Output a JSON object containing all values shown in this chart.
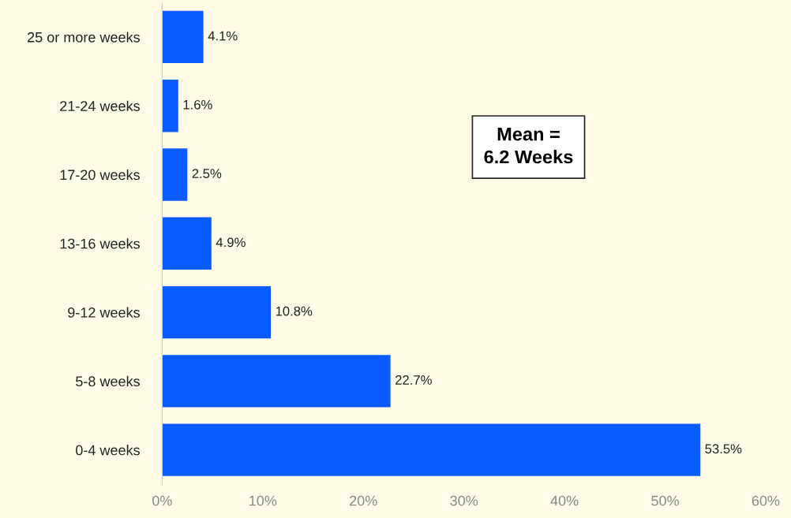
{
  "chart_data": {
    "type": "bar",
    "orientation": "horizontal",
    "categories": [
      "25 or more weeks",
      "21-24 weeks",
      "17-20 weeks",
      "13-16 weeks",
      "9-12 weeks",
      "5-8 weeks",
      "0-4 weeks"
    ],
    "values": [
      4.1,
      1.6,
      2.5,
      4.9,
      10.8,
      22.7,
      53.5
    ],
    "value_labels": [
      "4.1%",
      "1.6%",
      "2.5%",
      "4.9%",
      "10.8%",
      "22.7%",
      "53.5%"
    ],
    "color": "#0a5cff",
    "xlim": [
      0,
      60
    ],
    "xticks": [
      {
        "value": 0,
        "label": "0%"
      },
      {
        "value": 10,
        "label": "10%"
      },
      {
        "value": 20,
        "label": "20%"
      },
      {
        "value": 30,
        "label": "30%"
      },
      {
        "value": 40,
        "label": "40%"
      },
      {
        "value": 50,
        "label": "50%"
      },
      {
        "value": 60,
        "label": "60%"
      }
    ],
    "annotations": [
      "Mean =\n6.2 Weeks"
    ],
    "grid": false,
    "legend": false
  }
}
